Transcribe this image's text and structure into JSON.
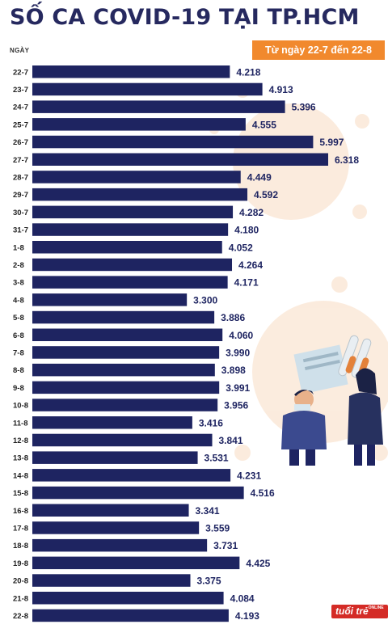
{
  "header": {
    "title": "SỐ CA COVID-19 TẠI TP.HCM",
    "subtitle": "Từ ngày 22-7 đến 22-8"
  },
  "logo": {
    "text": "tuổi trẻ",
    "tag": "ONLINE"
  },
  "colors": {
    "bar": "#1e2461",
    "accent": "#f1892d",
    "title": "#26295f",
    "virus": "#f8dcc3"
  },
  "chart_data": {
    "type": "bar",
    "orientation": "horizontal",
    "ylabel": "NGÀY",
    "categories": [
      "22-7",
      "23-7",
      "24-7",
      "25-7",
      "26-7",
      "27-7",
      "28-7",
      "29-7",
      "30-7",
      "31-7",
      "1-8",
      "2-8",
      "3-8",
      "4-8",
      "5-8",
      "6-8",
      "7-8",
      "8-8",
      "9-8",
      "10-8",
      "11-8",
      "12-8",
      "13-8",
      "14-8",
      "15-8",
      "16-8",
      "17-8",
      "18-8",
      "19-8",
      "20-8",
      "21-8",
      "22-8"
    ],
    "values": [
      4218,
      4913,
      5396,
      4555,
      5997,
      6318,
      4449,
      4592,
      4282,
      4180,
      4052,
      4264,
      4171,
      3300,
      3886,
      4060,
      3990,
      3898,
      3991,
      3956,
      3416,
      3841,
      3531,
      4231,
      4516,
      3341,
      3559,
      3731,
      4425,
      3375,
      4084,
      4193
    ],
    "value_labels": [
      "4.218",
      "4.913",
      "5.396",
      "4.555",
      "5.997",
      "6.318",
      "4.449",
      "4.592",
      "4.282",
      "4.180",
      "4.052",
      "4.264",
      "4.171",
      "3.300",
      "3.886",
      "4.060",
      "3.990",
      "3.898",
      "3.991",
      "3.956",
      "3.416",
      "3.841",
      "3.531",
      "4.231",
      "4.516",
      "3.341",
      "3.559",
      "3.731",
      "4.425",
      "3.375",
      "4.084",
      "4.193"
    ]
  }
}
